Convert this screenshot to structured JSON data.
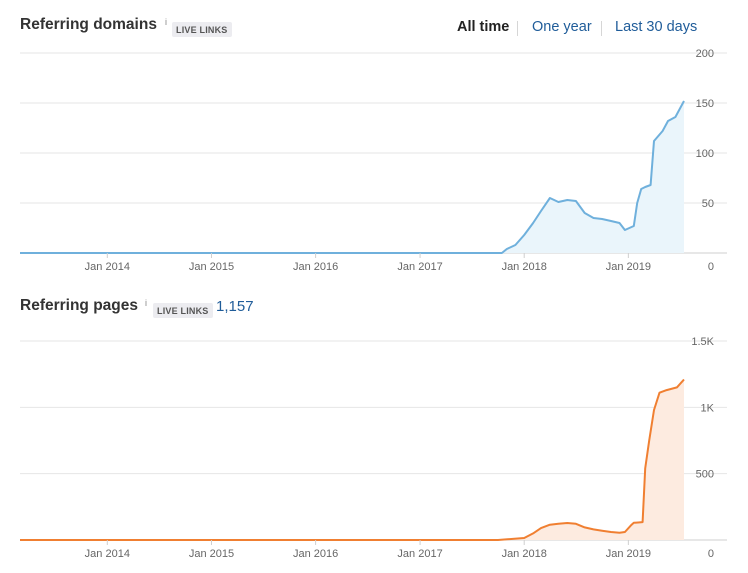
{
  "header": {
    "title": "Referring domains",
    "info_glyph": "i",
    "badge": "LIVE LINKS",
    "tabs": [
      {
        "label": "All time",
        "active": true
      },
      {
        "label": "One year",
        "active": false
      },
      {
        "label": "Last 30 days",
        "active": false
      }
    ]
  },
  "pages_header": {
    "title": "Referring pages",
    "info_glyph": "i",
    "badge": "LIVE LINKS",
    "count": "1,157"
  },
  "colors": {
    "domains_line": "#6fb0dc",
    "domains_fill": "#eaf5fb",
    "pages_line": "#f07f31",
    "pages_fill": "#fdebe0",
    "grid": "#e6e6e6"
  },
  "chart_data": [
    {
      "type": "area",
      "x_ticks": [
        "Jan 2014",
        "Jan 2015",
        "Jan 2016",
        "Jan 2017",
        "Jan 2018",
        "Jan 2019"
      ],
      "y_ticks": [
        "200",
        "150",
        "100",
        "50",
        "0"
      ],
      "ylim": [
        0,
        200
      ],
      "grid": true,
      "x_range": [
        "2013-03-01",
        "2019-07-15"
      ],
      "points": [
        [
          "2013-03-01",
          0
        ],
        [
          "2017-10-15",
          0
        ],
        [
          "2017-11-01",
          4
        ],
        [
          "2017-12-01",
          8
        ],
        [
          "2018-01-01",
          18
        ],
        [
          "2018-02-01",
          30
        ],
        [
          "2018-03-01",
          42
        ],
        [
          "2018-04-01",
          55
        ],
        [
          "2018-05-01",
          51
        ],
        [
          "2018-06-01",
          53
        ],
        [
          "2018-07-01",
          52
        ],
        [
          "2018-08-01",
          40
        ],
        [
          "2018-09-01",
          35
        ],
        [
          "2018-10-01",
          34
        ],
        [
          "2018-11-01",
          32
        ],
        [
          "2018-12-01",
          30
        ],
        [
          "2018-12-20",
          23
        ],
        [
          "2019-01-20",
          27
        ],
        [
          "2019-02-01",
          50
        ],
        [
          "2019-02-15",
          64
        ],
        [
          "2019-03-01",
          66
        ],
        [
          "2019-03-20",
          68
        ],
        [
          "2019-04-01",
          112
        ],
        [
          "2019-05-01",
          122
        ],
        [
          "2019-05-20",
          132
        ],
        [
          "2019-06-15",
          136
        ],
        [
          "2019-07-15",
          152
        ]
      ]
    },
    {
      "type": "area",
      "x_ticks": [
        "Jan 2014",
        "Jan 2015",
        "Jan 2016",
        "Jan 2017",
        "Jan 2018",
        "Jan 2019"
      ],
      "y_ticks": [
        "1.5K",
        "1K",
        "500",
        "0"
      ],
      "ylim": [
        0,
        1500
      ],
      "grid": true,
      "x_range": [
        "2013-03-01",
        "2019-07-15"
      ],
      "points": [
        [
          "2013-03-01",
          0
        ],
        [
          "2017-10-01",
          0
        ],
        [
          "2018-01-01",
          15
        ],
        [
          "2018-02-01",
          50
        ],
        [
          "2018-03-01",
          90
        ],
        [
          "2018-04-01",
          115
        ],
        [
          "2018-05-01",
          122
        ],
        [
          "2018-06-01",
          128
        ],
        [
          "2018-07-01",
          122
        ],
        [
          "2018-08-01",
          95
        ],
        [
          "2018-09-01",
          80
        ],
        [
          "2018-10-01",
          70
        ],
        [
          "2018-11-01",
          60
        ],
        [
          "2018-12-01",
          55
        ],
        [
          "2018-12-20",
          60
        ],
        [
          "2019-01-10",
          110
        ],
        [
          "2019-01-20",
          130
        ],
        [
          "2019-02-20",
          135
        ],
        [
          "2019-03-01",
          540
        ],
        [
          "2019-03-15",
          750
        ],
        [
          "2019-04-01",
          980
        ],
        [
          "2019-04-20",
          1110
        ],
        [
          "2019-05-15",
          1130
        ],
        [
          "2019-06-20",
          1150
        ],
        [
          "2019-07-15",
          1210
        ]
      ]
    }
  ]
}
